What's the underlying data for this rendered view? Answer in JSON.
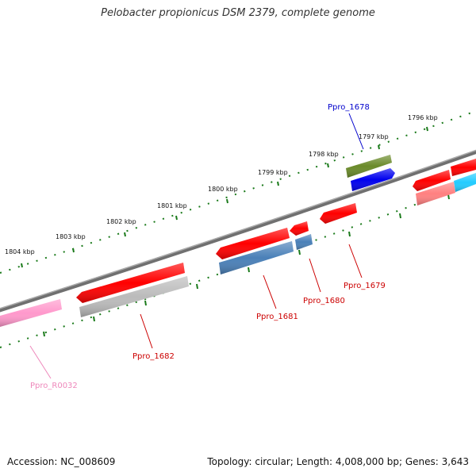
{
  "title": "Pelobacter propionicus DSM 2379, complete genome",
  "accession": "Accession: NC_008609",
  "stats": "Topology: circular; Length: 4,008,000 bp; Genes: 3,643",
  "ruler_labels": [
    "1796 kbp",
    "1797 kbp",
    "1798 kbp",
    "1799 kbp",
    "1800 kbp",
    "1801 kbp",
    "1802 kbp",
    "1803 kbp",
    "1804 kbp"
  ],
  "gene_labels": {
    "ppro_1678": "Ppro_1678",
    "ppro_1679": "Ppro_1679",
    "ppro_1680": "Ppro_1680",
    "ppro_1681": "Ppro_1681",
    "ppro_1682": "Ppro_1682",
    "ppro_r0032": "Ppro_R0032"
  },
  "colors": {
    "backbone": "#707070",
    "tick": "#1a7a1a",
    "cds": "#ff0000",
    "cds_light": "#ff8080",
    "gene_blue": "#4a80b8",
    "gene_grey": "#bbbbbb",
    "rna": "#ff99cc",
    "label_red": "#cc0000",
    "label_blue": "#0000cc",
    "label_pink": "#ee88bb",
    "olive": "#6a8a2a",
    "deep_blue": "#0000ee",
    "cyan": "#22ccff"
  }
}
